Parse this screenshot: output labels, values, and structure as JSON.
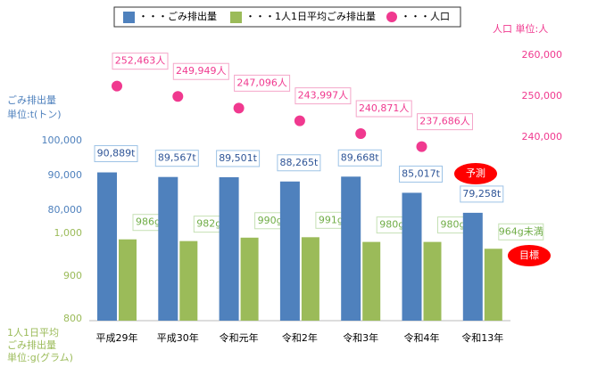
{
  "chart_data": {
    "type": "bar",
    "categories": [
      "平成29年",
      "平成30年",
      "令和元年",
      "令和2年",
      "令和3年",
      "令和4年",
      "令和13年"
    ],
    "series": [
      {
        "name": "・・・ごみ排出量",
        "color": "#4f81bd",
        "values": [
          90889,
          89567,
          89501,
          88265,
          89668,
          85017,
          79258
        ],
        "value_labels": [
          "90,889t",
          "89,567t",
          "89,501t",
          "88,265t",
          "89,668t",
          "85,017t",
          "79,258t"
        ]
      },
      {
        "name": "・・・1人1日平均ごみ排出量",
        "color": "#9bbb59",
        "axis": "y2",
        "values": [
          986,
          982,
          990,
          991,
          980,
          980,
          964
        ],
        "value_labels": [
          "986g",
          "982g",
          "990g",
          "991g",
          "980g",
          "980g",
          "964g未満"
        ]
      },
      {
        "name": "・・・人口",
        "color": "#f0398f",
        "axis": "y3",
        "type": "scatter",
        "values": [
          252463,
          249949,
          247096,
          243997,
          240871,
          237686
        ],
        "value_labels": [
          "252,463人",
          "249,949人",
          "247,096人",
          "243,997人",
          "240,871人",
          "237,686人"
        ]
      }
    ],
    "ylabel": [
      "ごみ排出量",
      "単位:t(トン)"
    ],
    "y2label": [
      "1人1日平均",
      "ごみ排出量",
      "単位:g(グラム)"
    ],
    "y3label": "人口  単位:人",
    "ylim": [
      80000,
      100000
    ],
    "yticks": [
      {
        "value": 80000,
        "label": "80,000"
      },
      {
        "value": 90000,
        "label": "90,000"
      },
      {
        "value": 100000,
        "label": "100,000"
      }
    ],
    "y2lim": [
      800,
      1000
    ],
    "y2ticks": [
      800,
      900,
      {
        "value": 1000,
        "label": "1,000"
      }
    ],
    "y3lim": [
      240000,
      260000
    ],
    "y3ticks": [
      {
        "value": 240000,
        "label": "240,000"
      },
      {
        "value": 250000,
        "label": "250,000"
      },
      {
        "value": 260000,
        "label": "260,000"
      }
    ],
    "annotations": [
      "予測",
      "目標"
    ]
  }
}
